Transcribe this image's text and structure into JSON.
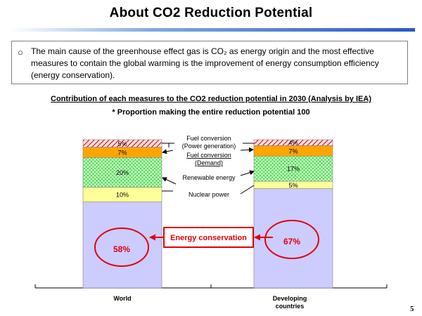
{
  "page": {
    "title": "About CO2 Reduction Potential",
    "intro_bullet": "○",
    "intro_text": "The main cause of the greenhouse effect gas is CO₂ as energy origin and the most effective measures to contain the global warming is the improvement of energy consumption efficiency (energy conservation).",
    "page_number": "5"
  },
  "colors": {
    "accent_blue": "#2a57c9",
    "highlight_red": "#e0000f"
  },
  "chart_data": {
    "type": "bar",
    "stacked": true,
    "title": "Contribution of each measures to the CO2 reduction potential in 2030 (Analysis by IEA)",
    "subtitle": "* Proportion making the entire reduction potential 100",
    "categories": [
      "World",
      "Developing countries"
    ],
    "ylim": [
      0,
      100
    ],
    "series": [
      {
        "name": "Energy conservation",
        "values": [
          58,
          67
        ],
        "labels": [
          "58%",
          "67%"
        ],
        "color": "#ccccff",
        "label_color": "#e0000f"
      },
      {
        "name": "Nuclear power",
        "values": [
          10,
          5
        ],
        "labels": [
          "10%",
          "5%"
        ],
        "color": "#ffff99",
        "label_color": "#000000"
      },
      {
        "name": "Renewable energy",
        "values": [
          20,
          17
        ],
        "labels": [
          "20%",
          "17%"
        ],
        "color": "#ccffcc",
        "label_color": "#000000"
      },
      {
        "name": "Fuel conversion (Demand)",
        "values": [
          7,
          7
        ],
        "labels": [
          "7%",
          "7%"
        ],
        "color": "#ffa500",
        "label_color": "#000000"
      },
      {
        "name": "Fuel conversion (Power generation)",
        "values": [
          5,
          4
        ],
        "labels": [
          "5%",
          "4%"
        ],
        "color": "#ffe3e3",
        "label_color": "#000000"
      }
    ],
    "annotations": {
      "fuel_power": "Fuel conversion\n(Power generation)",
      "fuel_demand": "Fuel conversion\n(Demand)",
      "renewable": "Renewable energy",
      "nuclear": "Nuclear power",
      "energy_conservation": "Energy conservation"
    },
    "grid": false
  }
}
